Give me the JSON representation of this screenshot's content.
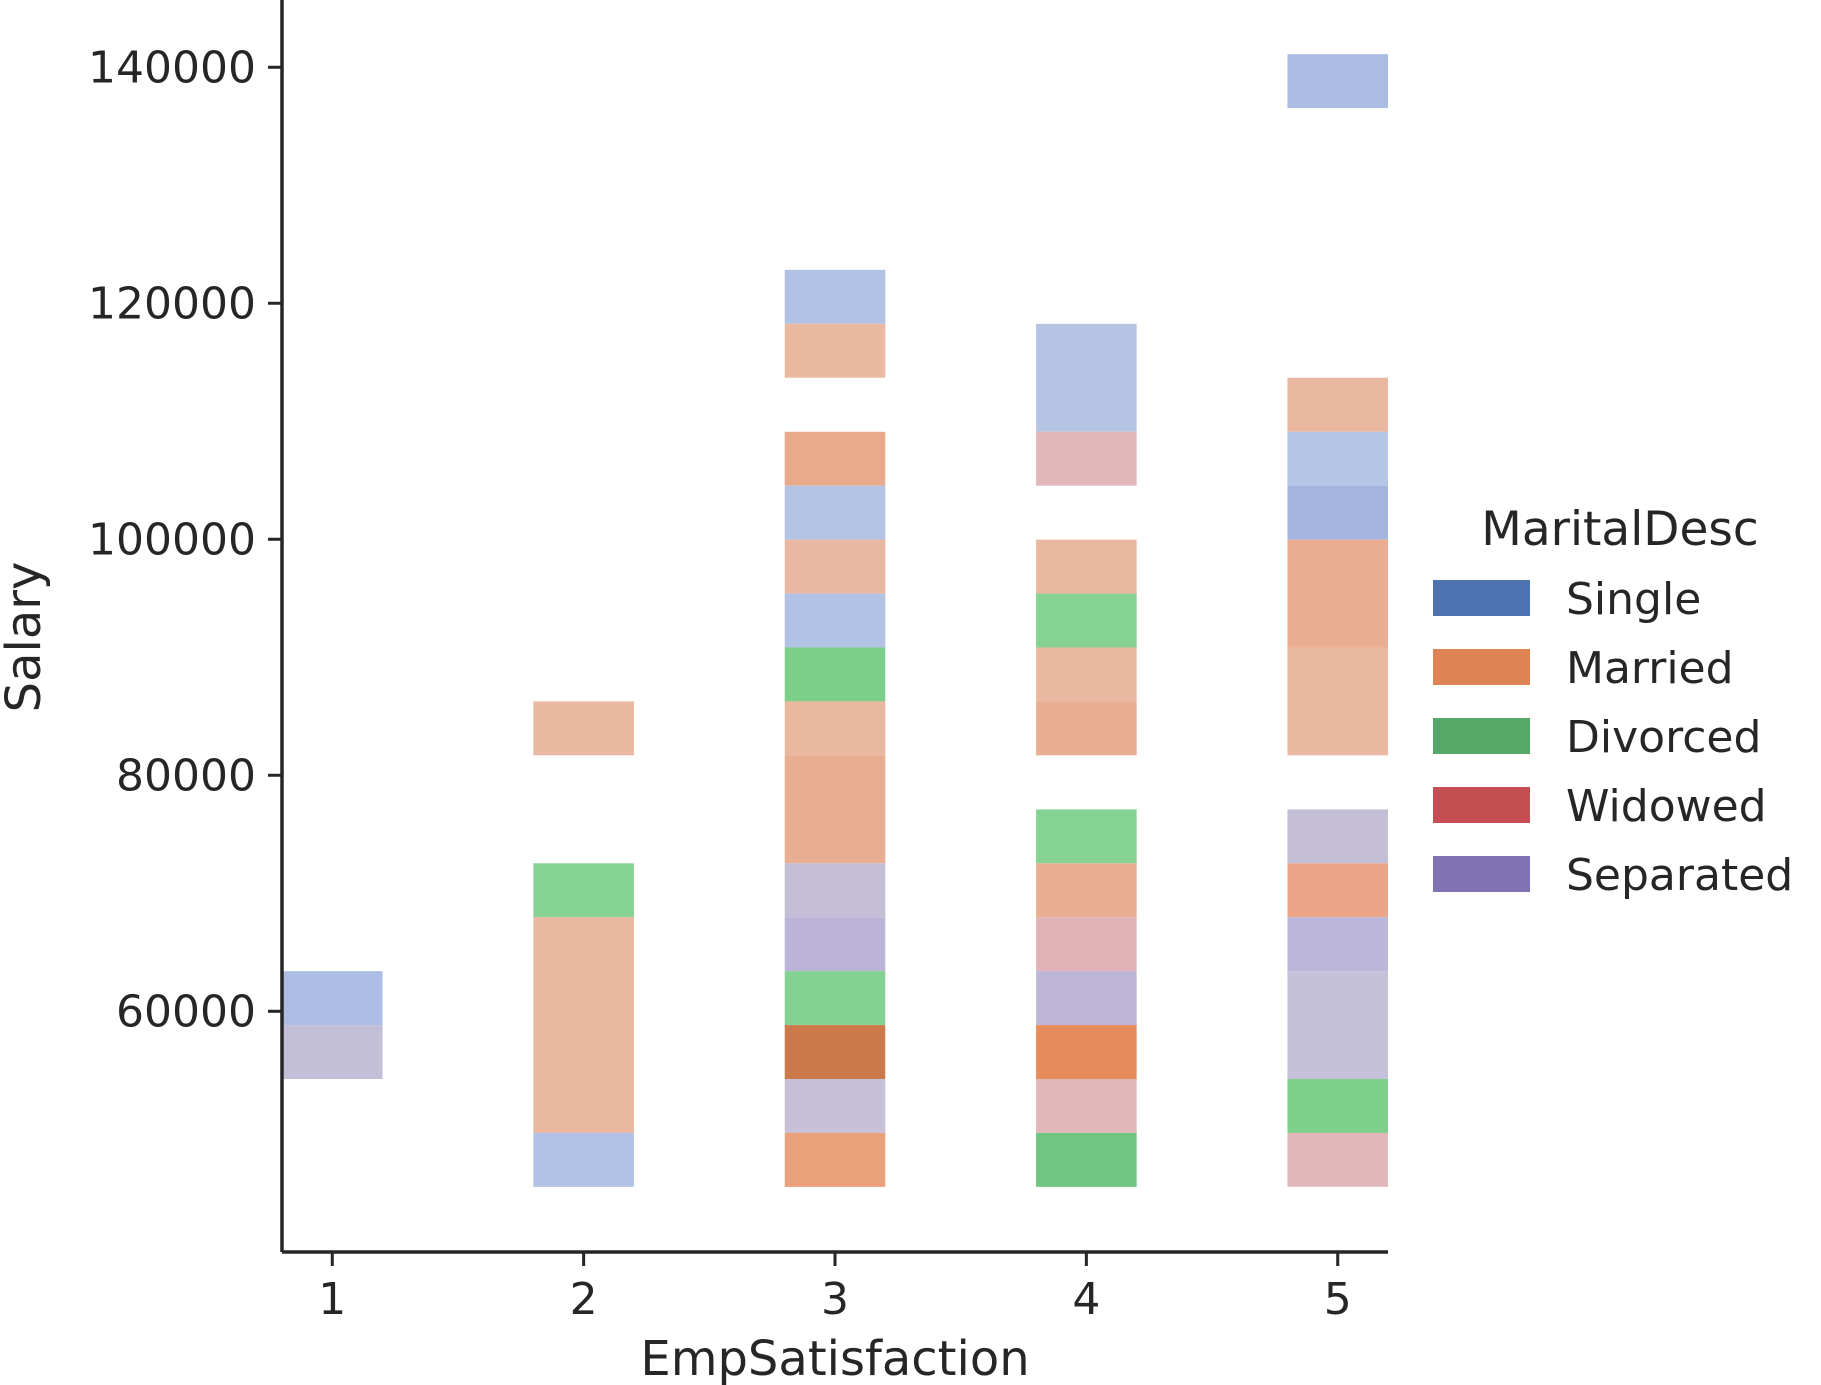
{
  "chart_data": {
    "type": "heatmap",
    "xlabel": "EmpSatisfaction",
    "ylabel": "Salary",
    "x_ticks": [
      "1",
      "2",
      "3",
      "4",
      "5"
    ],
    "y_ticks": [
      "60000",
      "80000",
      "100000",
      "120000",
      "140000"
    ],
    "xlim": [
      0.8,
      5.2
    ],
    "ylim": [
      39600,
      145700
    ],
    "bin_width_x": 0.4,
    "bin_height_y": 4571,
    "legend": {
      "title": "MaritalDesc",
      "placement": "right",
      "entries": [
        {
          "label": "Single",
          "color": "#4c72b0"
        },
        {
          "label": "Married",
          "color": "#dd8452"
        },
        {
          "label": "Divorced",
          "color": "#55a868"
        },
        {
          "label": "Widowed",
          "color": "#c44e52"
        },
        {
          "label": "Separated",
          "color": "#8172b3"
        }
      ]
    },
    "cells": [
      {
        "x": 1,
        "y0": 58830,
        "y1": 63400,
        "series": "Single",
        "color": "#aebde3"
      },
      {
        "x": 1,
        "y0": 54260,
        "y1": 58830,
        "series": "Separated",
        "color": "#c3bfd8"
      },
      {
        "x": 2,
        "y0": 81690,
        "y1": 86260,
        "series": "Married",
        "color": "#eab8a1"
      },
      {
        "x": 2,
        "y0": 67970,
        "y1": 72540,
        "series": "Divorced",
        "color": "#86d294"
      },
      {
        "x": 2,
        "y0": 49690,
        "y1": 67970,
        "series": "Married",
        "color": "#eab8a1"
      },
      {
        "x": 2,
        "y0": 45120,
        "y1": 49690,
        "series": "Single",
        "color": "#b2c2e6"
      },
      {
        "x": 3,
        "y0": 118260,
        "y1": 122830,
        "series": "Single",
        "color": "#b1c2e4"
      },
      {
        "x": 3,
        "y0": 113690,
        "y1": 118260,
        "series": "Married",
        "color": "#ebb8a1"
      },
      {
        "x": 3,
        "y0": 104540,
        "y1": 109110,
        "series": "Married",
        "color": "#e9aa8c"
      },
      {
        "x": 3,
        "y0": 99970,
        "y1": 104540,
        "series": "Single",
        "color": "#b3c3e4"
      },
      {
        "x": 3,
        "y0": 95400,
        "y1": 99970,
        "series": "Married",
        "color": "#eab8a2"
      },
      {
        "x": 3,
        "y0": 90830,
        "y1": 95400,
        "series": "Single",
        "color": "#b1c2e4"
      },
      {
        "x": 3,
        "y0": 86260,
        "y1": 90830,
        "series": "Divorced",
        "color": "#7ccf8b"
      },
      {
        "x": 3,
        "y0": 81690,
        "y1": 86260,
        "series": "Married",
        "color": "#eab8a1"
      },
      {
        "x": 3,
        "y0": 72540,
        "y1": 81690,
        "series": "Married",
        "color": "#e9ad91"
      },
      {
        "x": 3,
        "y0": 67970,
        "y1": 72540,
        "series": "Separated",
        "color": "#c4bfd7"
      },
      {
        "x": 3,
        "y0": 63400,
        "y1": 67970,
        "series": "Separated",
        "color": "#bcb4d6"
      },
      {
        "x": 3,
        "y0": 58830,
        "y1": 63400,
        "series": "Divorced",
        "color": "#84d293"
      },
      {
        "x": 3,
        "y0": 54260,
        "y1": 58830,
        "series": "Married",
        "color": "#cd7a4b"
      },
      {
        "x": 3,
        "y0": 49690,
        "y1": 54260,
        "series": "Separated",
        "color": "#c6c1d9"
      },
      {
        "x": 3,
        "y0": 45120,
        "y1": 49690,
        "series": "Married",
        "color": "#eba07c"
      },
      {
        "x": 4,
        "y0": 109110,
        "y1": 118260,
        "series": "Single",
        "color": "#b5c4e3"
      },
      {
        "x": 4,
        "y0": 104540,
        "y1": 109110,
        "series": "Widowed",
        "color": "#e1b8ba"
      },
      {
        "x": 4,
        "y0": 95400,
        "y1": 99970,
        "series": "Married",
        "color": "#eab8a1"
      },
      {
        "x": 4,
        "y0": 90830,
        "y1": 95400,
        "series": "Divorced",
        "color": "#86d294"
      },
      {
        "x": 4,
        "y0": 86260,
        "y1": 90830,
        "series": "Married",
        "color": "#eab8a1"
      },
      {
        "x": 4,
        "y0": 81690,
        "y1": 86260,
        "series": "Married",
        "color": "#e9ad91"
      },
      {
        "x": 4,
        "y0": 72540,
        "y1": 77110,
        "series": "Divorced",
        "color": "#86d294"
      },
      {
        "x": 4,
        "y0": 67970,
        "y1": 72540,
        "series": "Married",
        "color": "#e9ad91"
      },
      {
        "x": 4,
        "y0": 63400,
        "y1": 67970,
        "series": "Widowed",
        "color": "#e0b2b5"
      },
      {
        "x": 4,
        "y0": 58830,
        "y1": 63400,
        "series": "Separated",
        "color": "#bdb5d6"
      },
      {
        "x": 4,
        "y0": 54260,
        "y1": 58830,
        "series": "Married",
        "color": "#e68c5a"
      },
      {
        "x": 4,
        "y0": 49690,
        "y1": 54260,
        "series": "Widowed",
        "color": "#e1b8ba"
      },
      {
        "x": 4,
        "y0": 45120,
        "y1": 49690,
        "series": "Divorced",
        "color": "#6fc581"
      },
      {
        "x": 5,
        "y0": 136540,
        "y1": 141110,
        "series": "Single",
        "color": "#abbce3"
      },
      {
        "x": 5,
        "y0": 109110,
        "y1": 113690,
        "series": "Married",
        "color": "#eab8a1"
      },
      {
        "x": 5,
        "y0": 104540,
        "y1": 109110,
        "series": "Single",
        "color": "#b5c5e5"
      },
      {
        "x": 5,
        "y0": 99970,
        "y1": 104540,
        "series": "Single",
        "color": "#a3b5df"
      },
      {
        "x": 5,
        "y0": 90830,
        "y1": 99970,
        "series": "Married",
        "color": "#e9ad91"
      },
      {
        "x": 5,
        "y0": 81690,
        "y1": 90830,
        "series": "Married",
        "color": "#ebb8a2"
      },
      {
        "x": 5,
        "y0": 72540,
        "y1": 77110,
        "series": "Separated",
        "color": "#c4bfd7"
      },
      {
        "x": 5,
        "y0": 67970,
        "y1": 72540,
        "series": "Married",
        "color": "#eba688"
      },
      {
        "x": 5,
        "y0": 63400,
        "y1": 67970,
        "series": "Separated",
        "color": "#bcb6d8"
      },
      {
        "x": 5,
        "y0": 54260,
        "y1": 63400,
        "series": "Separated",
        "color": "#c5c1d8"
      },
      {
        "x": 5,
        "y0": 49690,
        "y1": 54260,
        "series": "Divorced",
        "color": "#7ed08c"
      },
      {
        "x": 5,
        "y0": 45120,
        "y1": 49690,
        "series": "Widowed",
        "color": "#e1b8ba"
      }
    ]
  }
}
